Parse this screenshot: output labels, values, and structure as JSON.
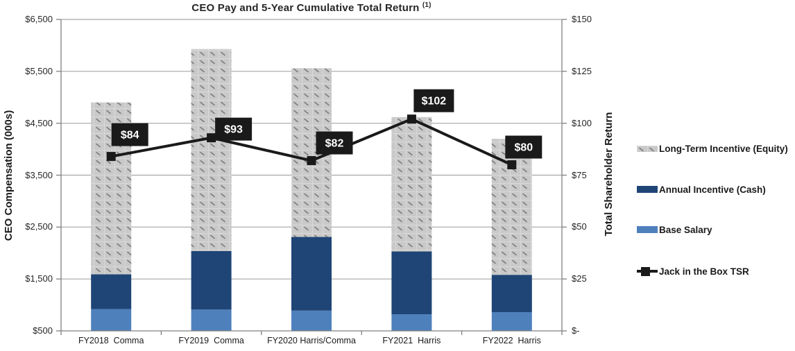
{
  "chart_data": {
    "type": "bar",
    "subtype": "stacked-column-with-line",
    "title": "CEO Pay and 5-Year Cumulative Total Return",
    "title_superscript": "(1)",
    "categories": [
      "FY2018  Comma",
      "FY2019  Comma",
      "FY2020 Harris/Comma",
      "FY2021  Harris",
      "FY2022  Harris"
    ],
    "series": [
      {
        "name": "Base Salary",
        "color": "#4E80BC",
        "axis": "left",
        "values": [
          920,
          910,
          890,
          820,
          860
        ]
      },
      {
        "name": "Annual Incentive (Cash)",
        "color": "#1F4576",
        "axis": "left",
        "values": [
          670,
          1130,
          1420,
          1210,
          720
        ]
      },
      {
        "name": "Long-Term Incentive (Equity)",
        "color": "pattern-gray-dash",
        "axis": "left",
        "values": [
          3310,
          3890,
          3250,
          2590,
          2620
        ]
      }
    ],
    "stacked_totals": [
      4900,
      5930,
      5560,
      4620,
      4200
    ],
    "line_series": {
      "name": "Jack in the Box TSR",
      "color": "#1a1a1a",
      "axis": "right",
      "values": [
        84,
        93,
        82,
        102,
        80
      ],
      "data_labels": [
        "$84",
        "$93",
        "$82",
        "$102",
        "$80"
      ]
    },
    "left_axis": {
      "title": "CEO Compensation (000s)",
      "min": 500,
      "max": 6500,
      "step": 1000,
      "ticks": [
        {
          "value": 6500,
          "label": "$6,500"
        },
        {
          "value": 5500,
          "label": "$5,500"
        },
        {
          "value": 4500,
          "label": "$4,500"
        },
        {
          "value": 3500,
          "label": "$3,500"
        },
        {
          "value": 2500,
          "label": "$2,500"
        },
        {
          "value": 1500,
          "label": "$1,500"
        },
        {
          "value": 500,
          "label": "$500"
        }
      ]
    },
    "right_axis": {
      "title": "Total Shareholder Return",
      "min": 0,
      "max": 150,
      "step": 25,
      "ticks": [
        {
          "value": 150,
          "label": "$150"
        },
        {
          "value": 125,
          "label": "$125"
        },
        {
          "value": 100,
          "label": "$100"
        },
        {
          "value": 75,
          "label": "$75"
        },
        {
          "value": 50,
          "label": "$50"
        },
        {
          "value": 25,
          "label": "$25"
        },
        {
          "value": 0,
          "label": "$-"
        }
      ]
    },
    "grid": true,
    "legend_position": "right",
    "colors": {
      "gridline": "#a6a6a6",
      "axis_line": "#808080",
      "pattern_bg": "#c9c9c9",
      "pattern_dash": "#7a7a7a",
      "pattern_cell": "#d9d9d9",
      "label_box_bg": "#1a1a1a",
      "label_box_text": "#ffffff"
    }
  }
}
